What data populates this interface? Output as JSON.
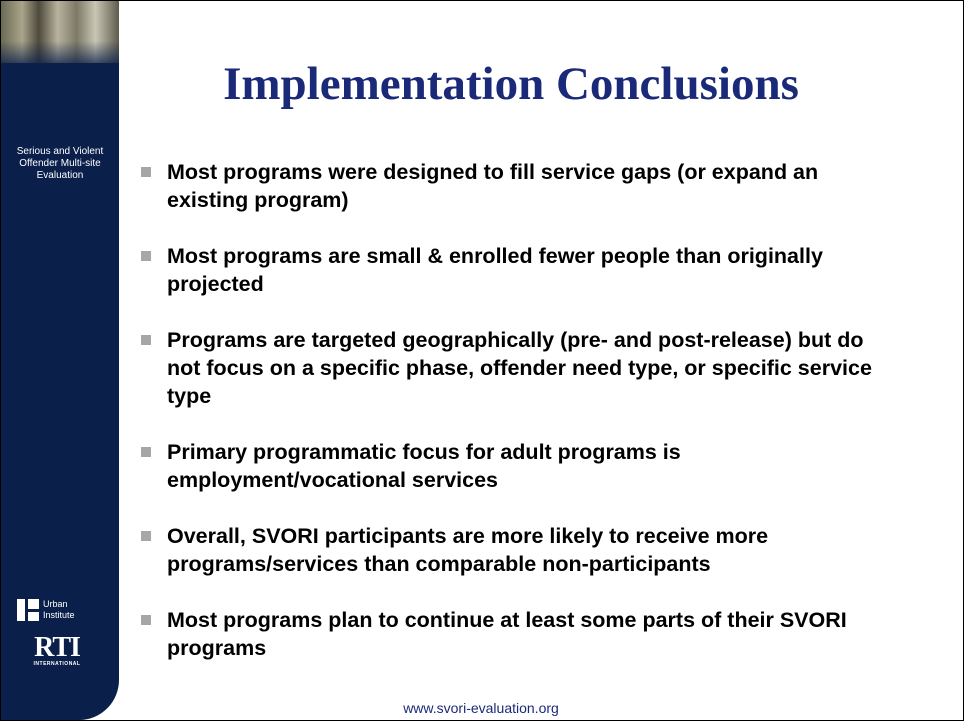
{
  "sidebar": {
    "caption": "Serious and Violent Offender Multi-site Evaluation",
    "logos": [
      {
        "label": "Urban Institute"
      },
      {
        "label": "RTI",
        "sublabel": "INTERNATIONAL"
      }
    ]
  },
  "title": "Implementation Conclusions",
  "bullets": [
    "Most programs were designed to fill service gaps (or expand an existing program)",
    "Most programs are small & enrolled fewer people than originally projected",
    "Programs are targeted geographically (pre- and post-release) but do not focus on a specific phase, offender need type, or specific service type",
    "Primary programmatic focus for adult programs is employment/vocational services",
    "Overall, SVORI participants are more likely to receive more programs/services than comparable non-participants",
    "Most programs plan to continue at least some parts of their SVORI programs"
  ],
  "footer": "www.svori-evaluation.org"
}
